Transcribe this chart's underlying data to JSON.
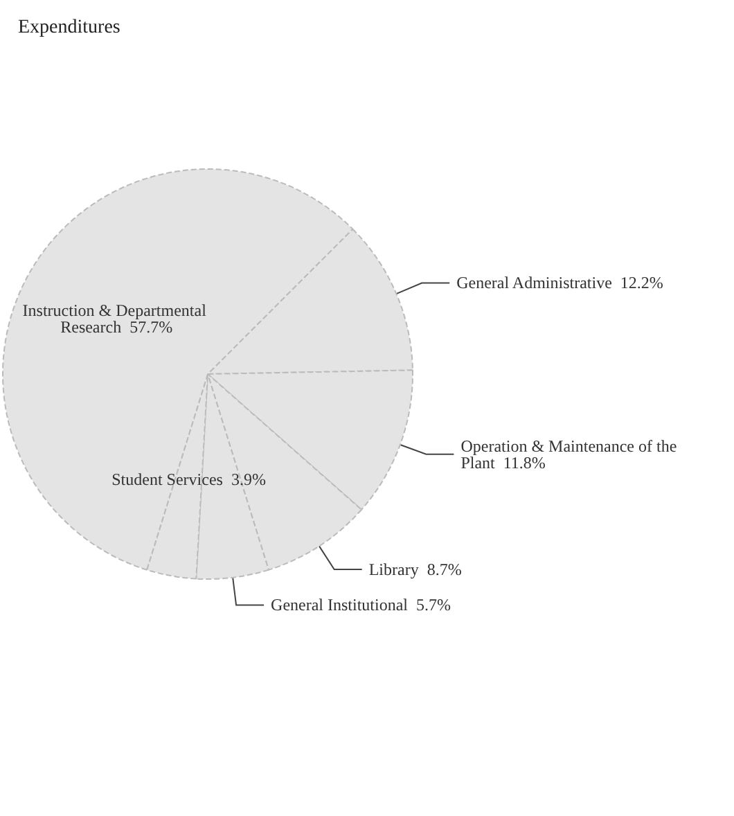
{
  "chart_data": {
    "type": "pie",
    "title": "Expenditures",
    "categories": [
      "General Administrative",
      "Operation & Maintenance of the Plant",
      "Library",
      "General Institutional",
      "Student Services",
      "Instruction & Departmental Research"
    ],
    "values": [
      12.2,
      11.8,
      8.7,
      5.7,
      3.9,
      57.7
    ],
    "value_labels": [
      "12.2%",
      "11.8%",
      "8.7%",
      "5.7%",
      "3.9%",
      "57.7%"
    ],
    "colors": [
      "#e4e4e4",
      "#e4e4e4",
      "#e4e4e4",
      "#e4e4e4",
      "#e4e4e4",
      "#e4e4e4"
    ],
    "legend": false
  }
}
